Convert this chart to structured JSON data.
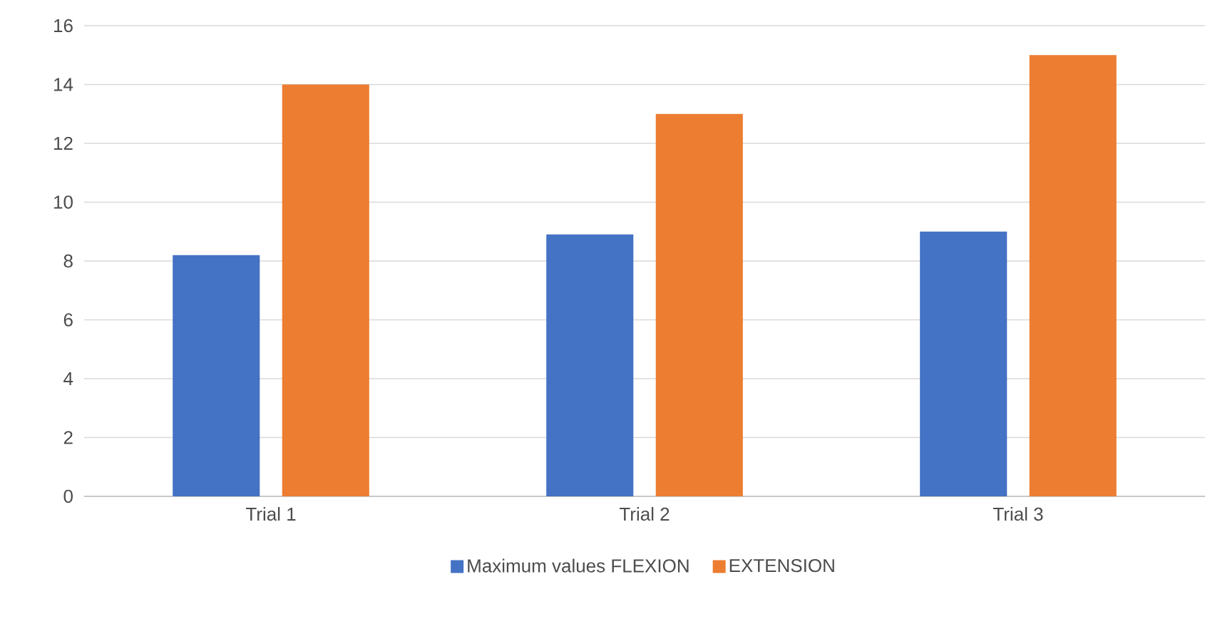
{
  "chart_data": {
    "type": "bar",
    "categories": [
      "Trial 1",
      "Trial 2",
      "Trial 3"
    ],
    "series": [
      {
        "name": "Maximum values FLEXION",
        "color": "#4472c4",
        "values": [
          8.2,
          8.9,
          9.0
        ]
      },
      {
        "name": "EXTENSION",
        "color": "#ed7d31",
        "values": [
          14,
          13,
          15
        ]
      }
    ],
    "ylim": [
      0,
      16
    ],
    "yticks": [
      0,
      2,
      4,
      6,
      8,
      10,
      12,
      14,
      16
    ],
    "grid": "y",
    "legend": "bottom"
  }
}
